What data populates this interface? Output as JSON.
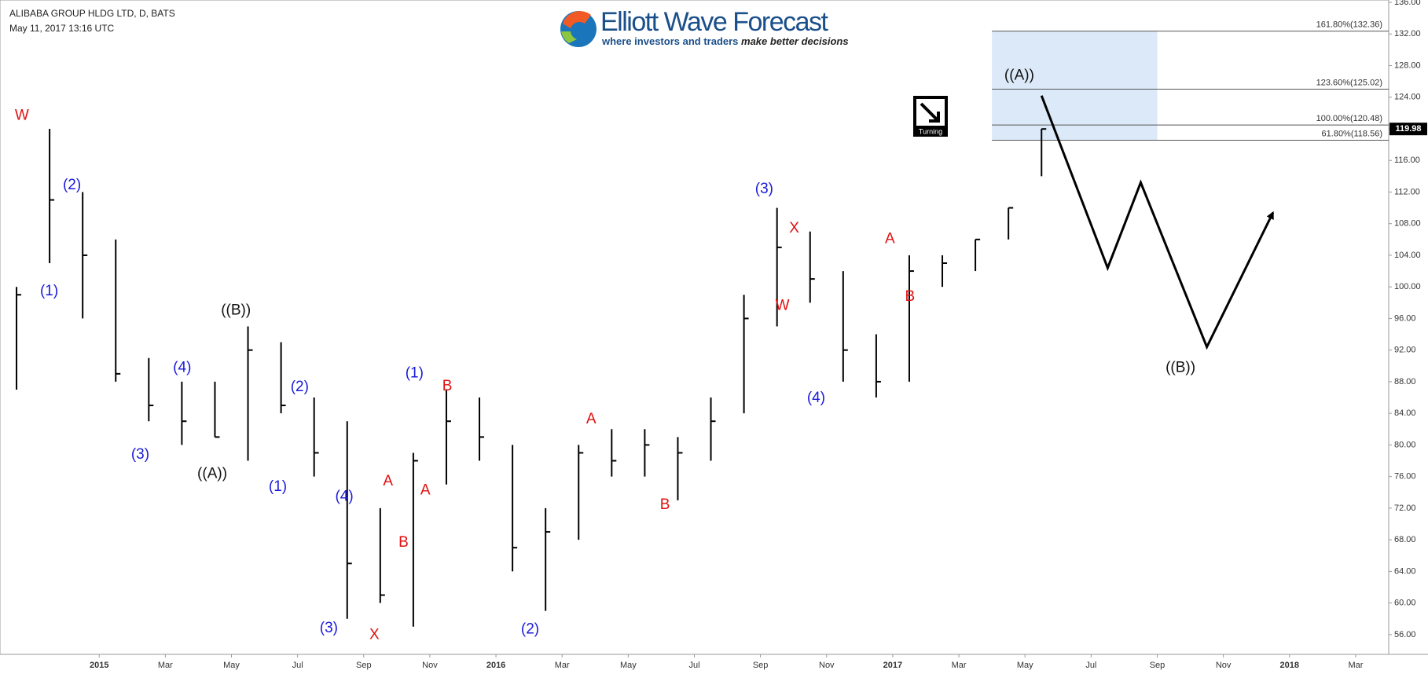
{
  "chart_data": {
    "type": "ohlc",
    "title": "ALIBABA GROUP HLDG LTD, D, BATS",
    "subtitle": "May 11, 2017 13:16 UTC",
    "x": [
      "2014-10",
      "2014-11",
      "2014-12",
      "2015-01",
      "2015-02",
      "2015-03",
      "2015-04",
      "2015-05",
      "2015-06",
      "2015-07",
      "2015-08",
      "2015-09",
      "2015-10",
      "2015-11",
      "2015-12",
      "2016-01",
      "2016-02",
      "2016-03",
      "2016-04",
      "2016-05",
      "2016-06",
      "2016-07",
      "2016-08",
      "2016-09",
      "2016-10",
      "2016-11",
      "2016-12",
      "2017-01",
      "2017-02",
      "2017-03",
      "2017-04",
      "2017-05"
    ],
    "high": [
      100,
      120,
      112,
      106,
      91,
      88,
      88,
      95,
      93,
      86,
      83,
      72,
      79,
      87,
      86,
      80,
      72,
      80,
      82,
      82,
      81,
      86,
      99,
      110,
      107,
      102,
      94,
      104,
      104,
      106,
      110,
      120
    ],
    "low": [
      87,
      103,
      96,
      88,
      83,
      80,
      81,
      78,
      84,
      76,
      58,
      60,
      57,
      75,
      78,
      64,
      59,
      68,
      76,
      76,
      73,
      78,
      84,
      95,
      98,
      88,
      86,
      88,
      100,
      102,
      106,
      114
    ],
    "close": [
      99,
      111,
      104,
      89,
      85,
      83,
      81,
      92,
      85,
      79,
      65,
      61,
      78,
      83,
      81,
      67,
      69,
      79,
      78,
      80,
      79,
      83,
      96,
      105,
      101,
      92,
      88,
      102,
      103,
      106,
      110,
      119.98
    ],
    "color": "#000000",
    "xlim": [
      "2014-10",
      "2018-04"
    ],
    "xticks": [
      {
        "value": "2015-01",
        "label": "2015"
      },
      {
        "value": "2015-03",
        "label": "Mar"
      },
      {
        "value": "2015-05",
        "label": "May"
      },
      {
        "value": "2015-07",
        "label": "Jul"
      },
      {
        "value": "2015-09",
        "label": "Sep"
      },
      {
        "value": "2015-11",
        "label": "Nov"
      },
      {
        "value": "2016-01",
        "label": "2016"
      },
      {
        "value": "2016-03",
        "label": "Mar"
      },
      {
        "value": "2016-05",
        "label": "May"
      },
      {
        "value": "2016-07",
        "label": "Jul"
      },
      {
        "value": "2016-09",
        "label": "Sep"
      },
      {
        "value": "2016-11",
        "label": "Nov"
      },
      {
        "value": "2017-01",
        "label": "2017"
      },
      {
        "value": "2017-03",
        "label": "Mar"
      },
      {
        "value": "2017-05",
        "label": "May"
      },
      {
        "value": "2017-07",
        "label": "Jul"
      },
      {
        "value": "2017-09",
        "label": "Sep"
      },
      {
        "value": "2017-11",
        "label": "Nov"
      },
      {
        "value": "2018-01",
        "label": "2018"
      },
      {
        "value": "2018-03",
        "label": "Mar"
      }
    ],
    "ylim": [
      53.5,
      136.3
    ],
    "yticks": [
      {
        "value": 56,
        "label": "56.00"
      },
      {
        "value": 60,
        "label": "60.00"
      },
      {
        "value": 64,
        "label": "64.00"
      },
      {
        "value": 68,
        "label": "68.00"
      },
      {
        "value": 72,
        "label": "72.00"
      },
      {
        "value": 76,
        "label": "76.00"
      },
      {
        "value": 80,
        "label": "80.00"
      },
      {
        "value": 84,
        "label": "84.00"
      },
      {
        "value": 88,
        "label": "88.00"
      },
      {
        "value": 92,
        "label": "92.00"
      },
      {
        "value": 96,
        "label": "96.00"
      },
      {
        "value": 100,
        "label": "100.00"
      },
      {
        "value": 104,
        "label": "104.00"
      },
      {
        "value": 108,
        "label": "108.00"
      },
      {
        "value": 112,
        "label": "112.00"
      },
      {
        "value": 116,
        "label": "116.00"
      },
      {
        "value": 120,
        "label": "120.00"
      },
      {
        "value": 124,
        "label": "124.00"
      },
      {
        "value": 128,
        "label": "128.00"
      },
      {
        "value": 132,
        "label": "132.00"
      },
      {
        "value": 136,
        "label": "136.00"
      }
    ],
    "fib_levels": [
      {
        "value": 132.36,
        "label": "161.80%(132.36)"
      },
      {
        "value": 125.02,
        "label": "123.60%(125.02)"
      },
      {
        "value": 120.48,
        "label": "100.00%(120.48)"
      },
      {
        "value": 118.56,
        "label": "61.80%(118.56)"
      }
    ],
    "fib_box": {
      "x": [
        "2017-04",
        "2017-08"
      ],
      "color": "#dce9f8"
    },
    "projection": {
      "x": [
        "2017-05",
        "2017-07",
        "2017-08",
        "2017-10",
        "2017-12"
      ],
      "values": [
        124.2,
        102.4,
        113.2,
        92.4,
        109.4
      ],
      "color": "#000000"
    },
    "annotations": [
      {
        "text": "W",
        "color": "#e01010"
      },
      {
        "text": "(2)",
        "color": "#1a1adc"
      },
      {
        "text": "(1)",
        "color": "#1a1adc"
      },
      {
        "text": "((B))",
        "color": "#111111"
      },
      {
        "text": "(4)",
        "color": "#1a1adc"
      },
      {
        "text": "(3)",
        "color": "#1a1adc"
      },
      {
        "text": "((A))",
        "color": "#111111"
      },
      {
        "text": "(2)",
        "color": "#1a1adc"
      },
      {
        "text": "(1)",
        "color": "#1a1adc"
      },
      {
        "text": "(4)",
        "color": "#1a1adc"
      },
      {
        "text": "(3)",
        "color": "#1a1adc"
      },
      {
        "text": "X",
        "color": "#e01010"
      },
      {
        "text": "A",
        "color": "#e01010"
      },
      {
        "text": "B",
        "color": "#e01010"
      },
      {
        "text": "A",
        "color": "#e01010"
      },
      {
        "text": "(1)",
        "color": "#1a1adc"
      },
      {
        "text": "B",
        "color": "#e01010"
      },
      {
        "text": "(2)",
        "color": "#1a1adc"
      },
      {
        "text": "A",
        "color": "#e01010"
      },
      {
        "text": "B",
        "color": "#e01010"
      },
      {
        "text": "(3)",
        "color": "#1a1adc"
      },
      {
        "text": "X",
        "color": "#e01010"
      },
      {
        "text": "W",
        "color": "#e01010"
      },
      {
        "text": "(4)",
        "color": "#1a1adc"
      },
      {
        "text": "A",
        "color": "#e01010"
      },
      {
        "text": "B",
        "color": "#e01010"
      },
      {
        "text": "((A))",
        "color": "#111111"
      },
      {
        "text": "((B))",
        "color": "#111111"
      }
    ],
    "turning_label": "Turning"
  },
  "logo": {
    "name": "Elliott Wave Forecast",
    "tagline": "where investors and traders ",
    "tagline_emphasis": "make better decisions"
  }
}
